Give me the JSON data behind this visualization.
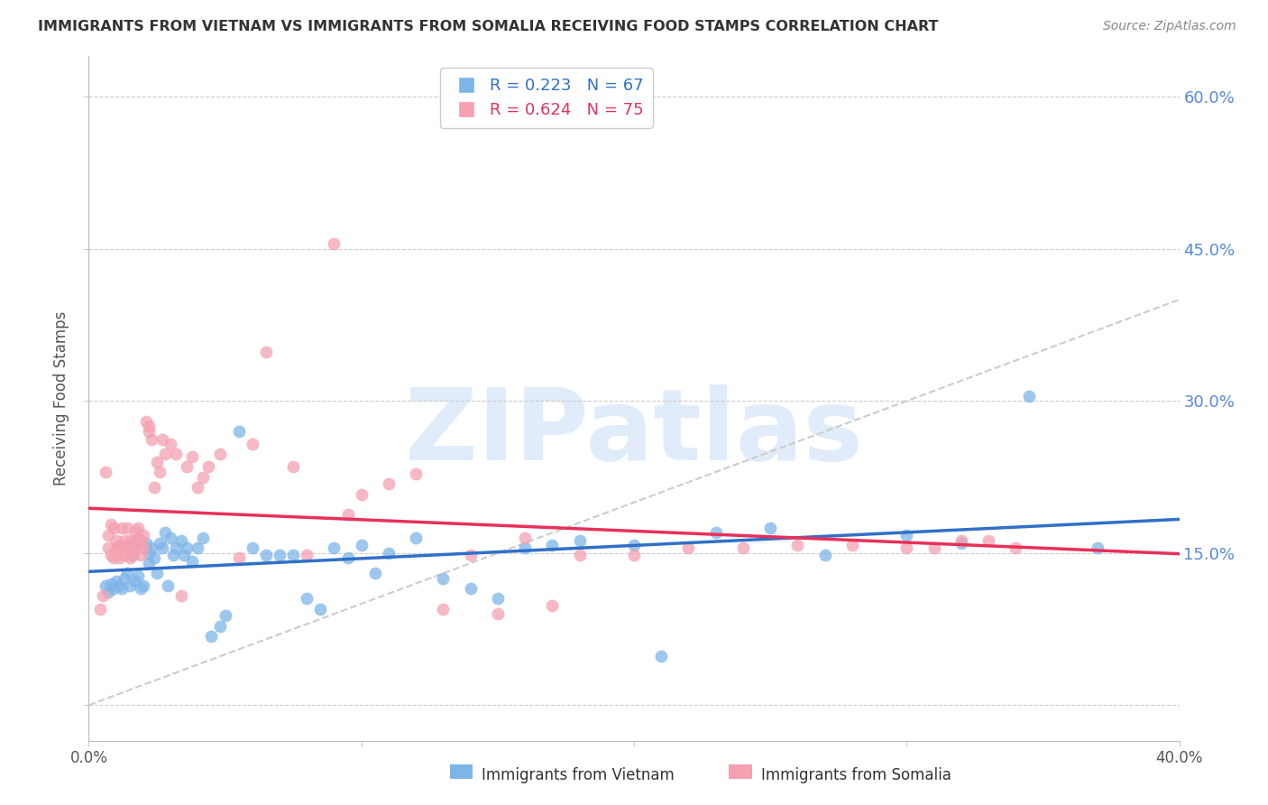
{
  "title": "IMMIGRANTS FROM VIETNAM VS IMMIGRANTS FROM SOMALIA RECEIVING FOOD STAMPS CORRELATION CHART",
  "source": "Source: ZipAtlas.com",
  "ylabel": "Receiving Food Stamps",
  "xmin": 0.0,
  "xmax": 0.4,
  "ymin": -0.035,
  "ymax": 0.64,
  "vietnam_color": "#7eb5e8",
  "somalia_color": "#f4a0b0",
  "vietnam_line_color": "#3070c8",
  "somalia_line_color": "#e8305a",
  "vietnam_R": 0.223,
  "vietnam_N": 67,
  "somalia_R": 0.624,
  "somalia_N": 75,
  "watermark": "ZIPatlas",
  "legend_label_vietnam": "Immigrants from Vietnam",
  "legend_label_somalia": "Immigrants from Somalia",
  "ytick_vals": [
    0.0,
    0.15,
    0.3,
    0.45,
    0.6
  ],
  "ytick_labels": [
    "",
    "15.0%",
    "30.0%",
    "45.0%",
    "60.0%"
  ],
  "vietnam_points_x": [
    0.006,
    0.007,
    0.008,
    0.009,
    0.01,
    0.011,
    0.012,
    0.013,
    0.014,
    0.015,
    0.015,
    0.016,
    0.017,
    0.017,
    0.018,
    0.019,
    0.02,
    0.021,
    0.022,
    0.022,
    0.023,
    0.024,
    0.025,
    0.026,
    0.027,
    0.028,
    0.029,
    0.03,
    0.031,
    0.032,
    0.034,
    0.035,
    0.036,
    0.038,
    0.04,
    0.042,
    0.045,
    0.048,
    0.05,
    0.055,
    0.06,
    0.065,
    0.07,
    0.075,
    0.08,
    0.085,
    0.09,
    0.095,
    0.1,
    0.105,
    0.11,
    0.12,
    0.13,
    0.14,
    0.15,
    0.16,
    0.17,
    0.18,
    0.2,
    0.21,
    0.23,
    0.25,
    0.27,
    0.3,
    0.32,
    0.345,
    0.37
  ],
  "vietnam_points_y": [
    0.118,
    0.112,
    0.12,
    0.115,
    0.122,
    0.118,
    0.115,
    0.125,
    0.13,
    0.118,
    0.155,
    0.148,
    0.122,
    0.162,
    0.128,
    0.115,
    0.118,
    0.16,
    0.15,
    0.14,
    0.155,
    0.145,
    0.13,
    0.16,
    0.155,
    0.17,
    0.118,
    0.165,
    0.148,
    0.155,
    0.162,
    0.148,
    0.155,
    0.142,
    0.155,
    0.165,
    0.068,
    0.078,
    0.088,
    0.27,
    0.155,
    0.148,
    0.148,
    0.148,
    0.105,
    0.095,
    0.155,
    0.145,
    0.158,
    0.13,
    0.15,
    0.165,
    0.125,
    0.115,
    0.105,
    0.155,
    0.158,
    0.162,
    0.158,
    0.048,
    0.17,
    0.175,
    0.148,
    0.168,
    0.16,
    0.305,
    0.155
  ],
  "somalia_points_x": [
    0.004,
    0.005,
    0.006,
    0.007,
    0.007,
    0.008,
    0.008,
    0.009,
    0.009,
    0.01,
    0.01,
    0.011,
    0.011,
    0.012,
    0.012,
    0.013,
    0.013,
    0.014,
    0.014,
    0.015,
    0.015,
    0.016,
    0.016,
    0.017,
    0.017,
    0.018,
    0.018,
    0.019,
    0.019,
    0.02,
    0.02,
    0.021,
    0.022,
    0.022,
    0.023,
    0.024,
    0.025,
    0.026,
    0.027,
    0.028,
    0.03,
    0.032,
    0.034,
    0.036,
    0.038,
    0.04,
    0.042,
    0.044,
    0.048,
    0.055,
    0.06,
    0.065,
    0.075,
    0.08,
    0.09,
    0.095,
    0.1,
    0.11,
    0.12,
    0.13,
    0.14,
    0.15,
    0.16,
    0.17,
    0.18,
    0.2,
    0.22,
    0.24,
    0.26,
    0.28,
    0.3,
    0.31,
    0.32,
    0.33,
    0.34
  ],
  "somalia_points_y": [
    0.095,
    0.108,
    0.23,
    0.155,
    0.168,
    0.148,
    0.178,
    0.145,
    0.175,
    0.155,
    0.162,
    0.158,
    0.145,
    0.155,
    0.175,
    0.148,
    0.162,
    0.158,
    0.175,
    0.145,
    0.162,
    0.155,
    0.148,
    0.155,
    0.172,
    0.165,
    0.175,
    0.148,
    0.162,
    0.155,
    0.168,
    0.28,
    0.27,
    0.275,
    0.262,
    0.215,
    0.24,
    0.23,
    0.262,
    0.248,
    0.258,
    0.248,
    0.108,
    0.235,
    0.245,
    0.215,
    0.225,
    0.235,
    0.248,
    0.145,
    0.258,
    0.348,
    0.235,
    0.148,
    0.455,
    0.188,
    0.208,
    0.218,
    0.228,
    0.095,
    0.148,
    0.09,
    0.165,
    0.098,
    0.148,
    0.148,
    0.155,
    0.155,
    0.158,
    0.158,
    0.155,
    0.155,
    0.162,
    0.162,
    0.155
  ]
}
